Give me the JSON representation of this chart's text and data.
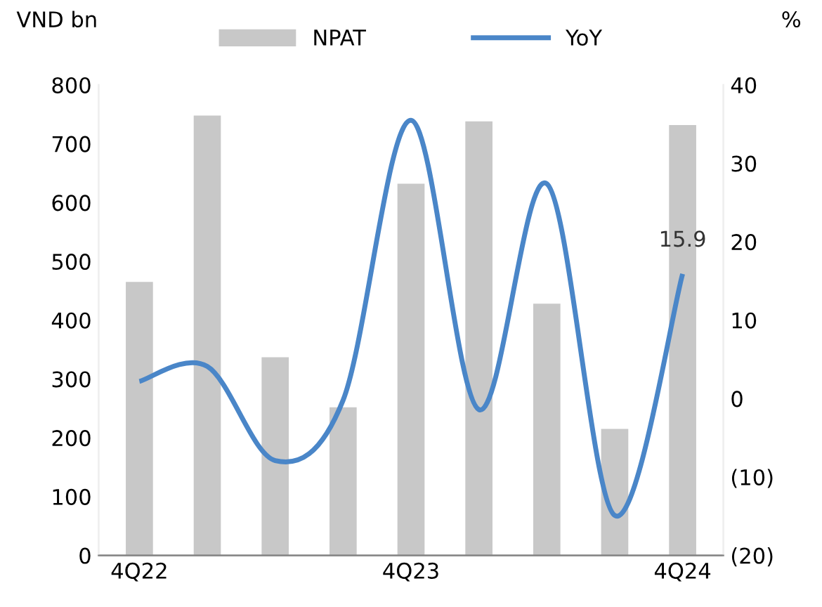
{
  "chart_data": {
    "type": "bar",
    "categories": [
      "4Q22",
      null,
      null,
      null,
      "4Q23",
      null,
      null,
      null,
      "4Q24"
    ],
    "ylabel": "VND bn",
    "y2label": "%",
    "legend": "top",
    "grid": false,
    "ylim": [
      0,
      800
    ],
    "yticks": [
      0,
      100,
      200,
      300,
      400,
      500,
      600,
      700,
      800
    ],
    "y2lim": [
      -20,
      40
    ],
    "y2ticks": [
      {
        "value": -20,
        "label": "(20)"
      },
      {
        "value": -10,
        "label": "(10)"
      },
      0,
      10,
      20,
      30,
      40
    ],
    "series": [
      {
        "name": "NPAT",
        "color": "#c8c8c8",
        "values": [
          465,
          748,
          337,
          252,
          632,
          738,
          428,
          215,
          732
        ]
      },
      {
        "name": "YoY",
        "type": "line",
        "axis": "y2",
        "color": "#4a86c8",
        "marker": "none",
        "line_style": "solid",
        "values": [
          2.2,
          4.1,
          -7.9,
          -0.2,
          35.5,
          -1.4,
          27.4,
          -14.9,
          15.9
        ],
        "value_labels": [
          null,
          null,
          null,
          null,
          null,
          null,
          null,
          null,
          "15.9"
        ]
      }
    ]
  }
}
